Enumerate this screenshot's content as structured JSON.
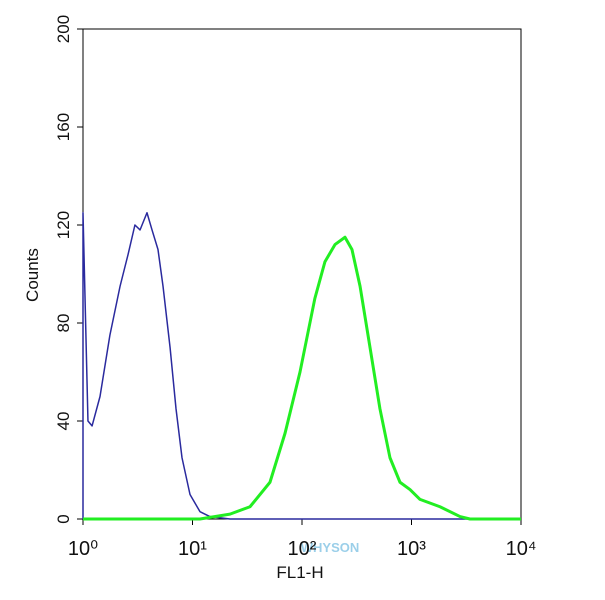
{
  "chart_data": {
    "type": "line",
    "xlabel": "FL1-H",
    "ylabel": "Counts",
    "xscale": "log",
    "xlim": [
      1,
      10000
    ],
    "ylim": [
      0,
      200
    ],
    "xticks": [
      {
        "value": 1,
        "label": "10⁰"
      },
      {
        "value": 10,
        "label": "10¹"
      },
      {
        "value": 100,
        "label": "10²"
      },
      {
        "value": 1000,
        "label": "10³"
      },
      {
        "value": 10000,
        "label": "10⁴"
      }
    ],
    "yticks": [
      0,
      40,
      80,
      120,
      160,
      200
    ],
    "watermark": "WHYSON",
    "series": [
      {
        "color": "#2a2a9e",
        "x": [
          1,
          1,
          1.11,
          1.21,
          1.43,
          1.76,
          2.18,
          2.58,
          2.98,
          3.32,
          3.84,
          4.27,
          4.84,
          5.38,
          6.24,
          7.07,
          8.02,
          9.49,
          11.7,
          14.4,
          22.0,
          10000
        ],
        "values": [
          0,
          125,
          40,
          38,
          50,
          75,
          95,
          108,
          120,
          118,
          125,
          118,
          110,
          95,
          70,
          45,
          25,
          10,
          3,
          1,
          0,
          0
        ]
      },
      {
        "color": "#22ee22",
        "x": [
          1,
          11.7,
          22.0,
          33.5,
          51.0,
          70.0,
          95.9,
          131,
          162,
          200,
          247,
          286,
          339,
          418,
          515,
          636,
          785,
          969,
          1196,
          1820,
          2775,
          3420,
          10000
        ],
        "values": [
          0,
          0,
          2,
          5,
          15,
          35,
          60,
          90,
          105,
          112,
          115,
          110,
          95,
          70,
          45,
          25,
          15,
          12,
          8,
          5,
          1,
          0,
          0
        ]
      }
    ]
  }
}
